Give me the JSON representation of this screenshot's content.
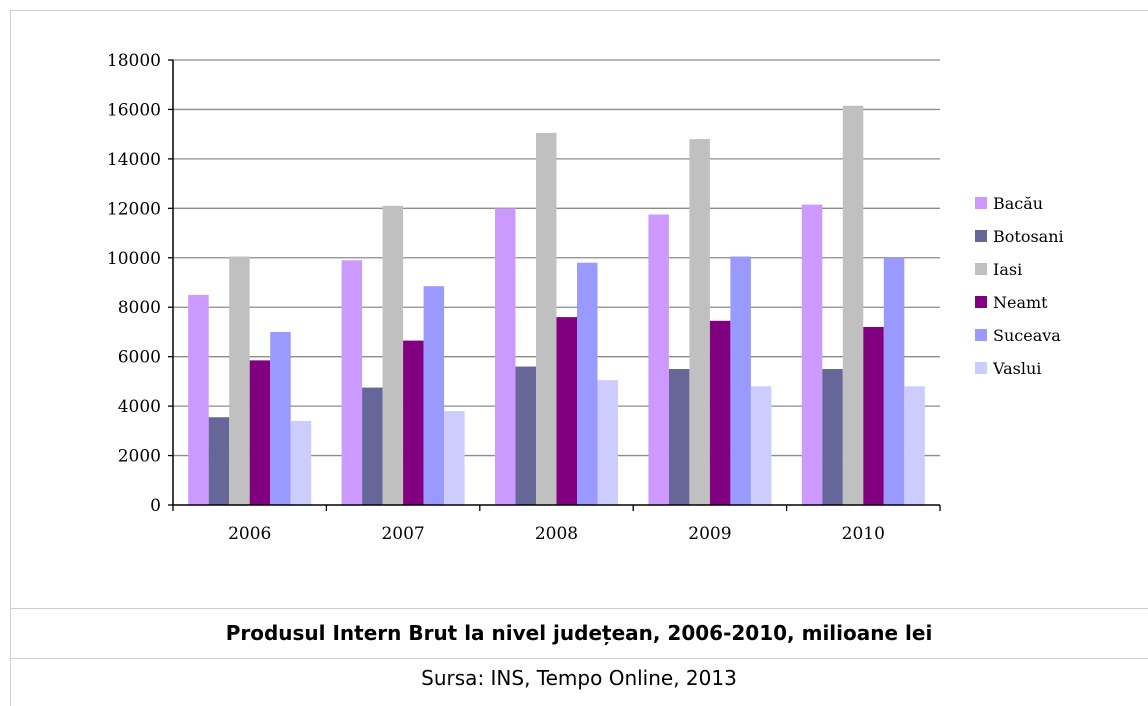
{
  "chart_data": {
    "type": "bar",
    "categories": [
      "2006",
      "2007",
      "2008",
      "2009",
      "2010"
    ],
    "series": [
      {
        "name": "Bacău",
        "color": "#cc99ff",
        "values": [
          8500,
          9900,
          12000,
          11750,
          12150
        ]
      },
      {
        "name": "Botosani",
        "color": "#666699",
        "values": [
          3550,
          4750,
          5600,
          5500,
          5500
        ]
      },
      {
        "name": "Iasi",
        "color": "#c0c0c0",
        "values": [
          10050,
          12100,
          15050,
          14800,
          16150
        ]
      },
      {
        "name": "Neamt",
        "color": "#800080",
        "values": [
          5850,
          6650,
          7600,
          7450,
          7200
        ]
      },
      {
        "name": "Suceava",
        "color": "#9999ff",
        "values": [
          7000,
          8850,
          9800,
          10050,
          10000
        ]
      },
      {
        "name": "Vaslui",
        "color": "#ccccff",
        "values": [
          3400,
          3800,
          5050,
          4800,
          4800
        ]
      }
    ],
    "ylim": [
      0,
      18000
    ],
    "yticks": [
      0,
      2000,
      4000,
      6000,
      8000,
      10000,
      12000,
      14000,
      16000,
      18000
    ],
    "grid": true,
    "legend_position": "right",
    "title": "Produsul Intern Brut la nivel județean, 2006-2010, milioane lei",
    "source": "Sursa: INS, Tempo Online, 2013",
    "xlabel": "",
    "ylabel": ""
  }
}
